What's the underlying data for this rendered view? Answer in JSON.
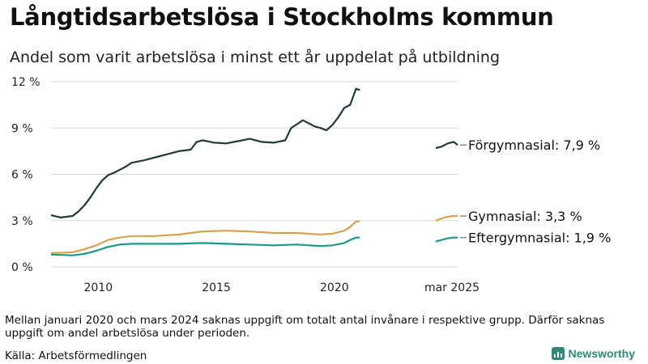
{
  "header": {
    "title": "Långtidsarbetslösa i Stockholms kommun",
    "subtitle": "Andel som varit arbetslösa i minst ett år uppdelat på utbildning"
  },
  "footer": {
    "note": "Mellan januari 2020 och mars 2024 saknas uppgift om totalt antal invånare i respektive grupp. Därför saknas uppgift om andel arbetslösa under perioden.",
    "source": "Källa: Arbetsförmedlingen",
    "brand": "Newsworthy"
  },
  "colors": {
    "forgymnasial": "#1f3d36",
    "gymnasial": "#d9a24e",
    "eftergymnasial": "#1a9a8a",
    "brand": "#2b8a78"
  },
  "chart_data": {
    "type": "line",
    "title": "Långtidsarbetslösa i Stockholms kommun",
    "subtitle": "Andel som varit arbetslösa i minst ett år uppdelat på utbildning",
    "y_unit": "%",
    "ylim": [
      0,
      12
    ],
    "yticks": [
      {
        "value": 0,
        "label": "0 %"
      },
      {
        "value": 3,
        "label": "3 %"
      },
      {
        "value": 6,
        "label": "6 %"
      },
      {
        "value": 9,
        "label": "9 %"
      },
      {
        "value": 12,
        "label": "12 %"
      }
    ],
    "xticks": [
      "2010",
      "2015",
      "2020"
    ],
    "grid": "horizontal",
    "gap_note": "Mellan januari 2020 och mars 2024 saknas uppgift om totalt antal invånare i respektive grupp. Därför saknas uppgift om andel arbetslösa under perioden.",
    "recent_period_label": "mar 2025",
    "series": [
      {
        "name": "Förgymnasial",
        "end_label": "Förgymnasial: 7,9 %",
        "color": "#1f3d36",
        "history": [
          [
            "2008-01",
            3.35
          ],
          [
            "2008-06",
            3.2
          ],
          [
            "2008-12",
            3.3
          ],
          [
            "2009-03",
            3.6
          ],
          [
            "2009-06",
            4.0
          ],
          [
            "2009-09",
            4.5
          ],
          [
            "2009-12",
            5.1
          ],
          [
            "2010-03",
            5.6
          ],
          [
            "2010-06",
            5.95
          ],
          [
            "2010-09",
            6.1
          ],
          [
            "2010-12",
            6.3
          ],
          [
            "2011-03",
            6.5
          ],
          [
            "2011-06",
            6.75
          ],
          [
            "2011-12",
            6.9
          ],
          [
            "2012-06",
            7.1
          ],
          [
            "2012-12",
            7.3
          ],
          [
            "2013-06",
            7.5
          ],
          [
            "2013-12",
            7.6
          ],
          [
            "2014-03",
            8.1
          ],
          [
            "2014-06",
            8.2
          ],
          [
            "2014-12",
            8.05
          ],
          [
            "2015-06",
            8.0
          ],
          [
            "2015-12",
            8.15
          ],
          [
            "2016-06",
            8.3
          ],
          [
            "2016-12",
            8.1
          ],
          [
            "2017-06",
            8.05
          ],
          [
            "2017-12",
            8.2
          ],
          [
            "2018-03",
            9.0
          ],
          [
            "2018-09",
            9.5
          ],
          [
            "2018-12",
            9.3
          ],
          [
            "2019-03",
            9.1
          ],
          [
            "2019-06",
            9.0
          ],
          [
            "2019-09",
            8.85
          ],
          [
            "2019-12",
            9.2
          ],
          [
            "2020-03",
            9.7
          ],
          [
            "2020-06",
            10.3
          ],
          [
            "2020-09",
            10.5
          ],
          [
            "2020-12",
            11.55
          ],
          [
            "2021-02",
            11.45
          ]
        ],
        "recent": [
          [
            "2024-04",
            7.7
          ],
          [
            "2024-07",
            7.8
          ],
          [
            "2024-10",
            8.0
          ],
          [
            "2025-01",
            8.1
          ],
          [
            "2025-03",
            7.9
          ]
        ]
      },
      {
        "name": "Gymnasial",
        "end_label": "Gymnasial: 3,3 %",
        "color": "#d9a24e",
        "history": [
          [
            "2008-01",
            0.9
          ],
          [
            "2008-12",
            0.95
          ],
          [
            "2009-06",
            1.15
          ],
          [
            "2009-12",
            1.4
          ],
          [
            "2010-06",
            1.75
          ],
          [
            "2010-12",
            1.9
          ],
          [
            "2011-06",
            2.0
          ],
          [
            "2012-06",
            2.0
          ],
          [
            "2013-06",
            2.1
          ],
          [
            "2013-12",
            2.2
          ],
          [
            "2014-06",
            2.3
          ],
          [
            "2015-06",
            2.35
          ],
          [
            "2016-06",
            2.3
          ],
          [
            "2017-06",
            2.2
          ],
          [
            "2018-06",
            2.2
          ],
          [
            "2019-06",
            2.1
          ],
          [
            "2019-12",
            2.15
          ],
          [
            "2020-06",
            2.35
          ],
          [
            "2020-09",
            2.6
          ],
          [
            "2020-12",
            2.95
          ],
          [
            "2021-02",
            2.95
          ]
        ],
        "recent": [
          [
            "2024-04",
            3.0
          ],
          [
            "2024-07",
            3.15
          ],
          [
            "2024-10",
            3.25
          ],
          [
            "2025-01",
            3.3
          ],
          [
            "2025-03",
            3.3
          ]
        ]
      },
      {
        "name": "Eftergymnasial",
        "end_label": "Eftergymnasial: 1,9 %",
        "color": "#1a9a8a",
        "history": [
          [
            "2008-01",
            0.8
          ],
          [
            "2008-12",
            0.75
          ],
          [
            "2009-06",
            0.85
          ],
          [
            "2009-12",
            1.05
          ],
          [
            "2010-06",
            1.3
          ],
          [
            "2010-12",
            1.45
          ],
          [
            "2011-06",
            1.5
          ],
          [
            "2012-06",
            1.5
          ],
          [
            "2013-06",
            1.5
          ],
          [
            "2014-06",
            1.55
          ],
          [
            "2015-06",
            1.5
          ],
          [
            "2016-06",
            1.45
          ],
          [
            "2017-06",
            1.4
          ],
          [
            "2018-06",
            1.45
          ],
          [
            "2019-06",
            1.35
          ],
          [
            "2019-12",
            1.4
          ],
          [
            "2020-06",
            1.55
          ],
          [
            "2020-09",
            1.75
          ],
          [
            "2020-12",
            1.9
          ],
          [
            "2021-02",
            1.9
          ]
        ],
        "recent": [
          [
            "2024-04",
            1.65
          ],
          [
            "2024-07",
            1.75
          ],
          [
            "2024-10",
            1.85
          ],
          [
            "2025-01",
            1.9
          ],
          [
            "2025-03",
            1.9
          ]
        ]
      }
    ]
  }
}
